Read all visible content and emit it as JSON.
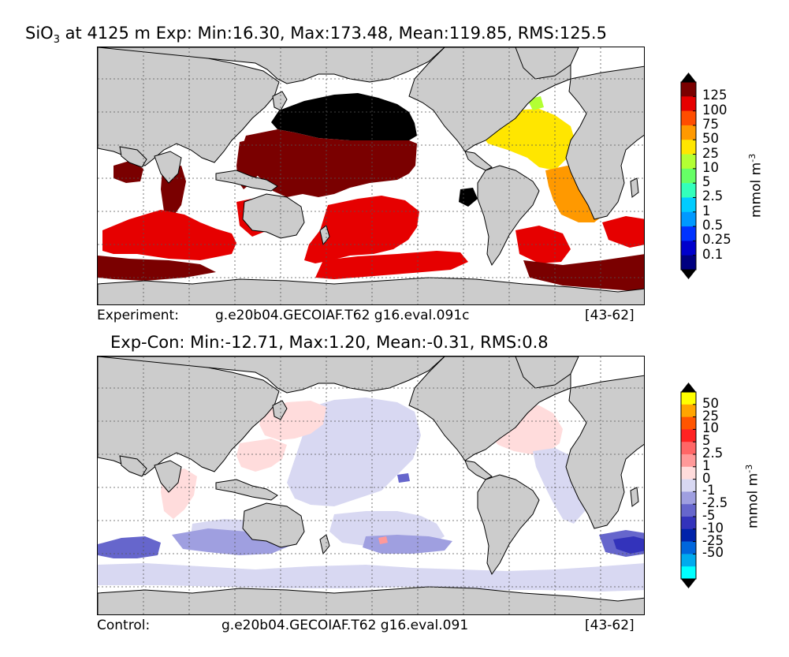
{
  "top": {
    "title_prefix": "SiO",
    "title_sub": "3",
    "title_rest": " at 4125 m Exp: Min:16.30, Max:173.48, Mean:119.85, RMS:125.5",
    "footer_label": "Experiment:",
    "footer_case": "g.e20b04.GECOIAF.T62 g16.eval.091c",
    "footer_years": "[43-62]",
    "colorbar": {
      "labels": [
        "125",
        "100",
        "75",
        "50",
        "25",
        "10",
        "5",
        "2.5",
        "1",
        "0.5",
        "0.25",
        "0.1"
      ],
      "colors": [
        "#7a0000",
        "#e60000",
        "#ff4d00",
        "#ff9900",
        "#ffe600",
        "#b3ff33",
        "#66ff66",
        "#33ffbb",
        "#00ccff",
        "#0099ff",
        "#0033ff",
        "#0000cc",
        "#000080"
      ],
      "over_color": "#000000",
      "under_color": "#000000",
      "units": "mmol m",
      "units_sup": "-3"
    }
  },
  "bottom": {
    "title": "Exp-Con: Min:-12.71, Max:1.20, Mean:-0.31, RMS:0.8",
    "footer_label": "Control:",
    "footer_case": "g.e20b04.GECOIAF.T62 g16.eval.091",
    "footer_years": "[43-62]",
    "colorbar": {
      "labels": [
        "50",
        "25",
        "10",
        "5",
        "2.5",
        "1",
        "0",
        "-1",
        "-2.5",
        "-5",
        "-10",
        "-25",
        "-50"
      ],
      "colors": [
        "#ffff00",
        "#ffa500",
        "#ff5500",
        "#ff2222",
        "#ff6666",
        "#ff9999",
        "#ffdcdc",
        "#d8d8f2",
        "#9f9fe0",
        "#6666cc",
        "#3333bb",
        "#0022aa",
        "#0066dd",
        "#00aaee",
        "#00ffff"
      ],
      "over_color": "#000000",
      "under_color": "#000000",
      "units": "mmol m",
      "units_sup": "-3"
    }
  },
  "map": {
    "land_color": "#cccccc",
    "ocean_color": "#ffffff",
    "grid_color": "#555555"
  }
}
